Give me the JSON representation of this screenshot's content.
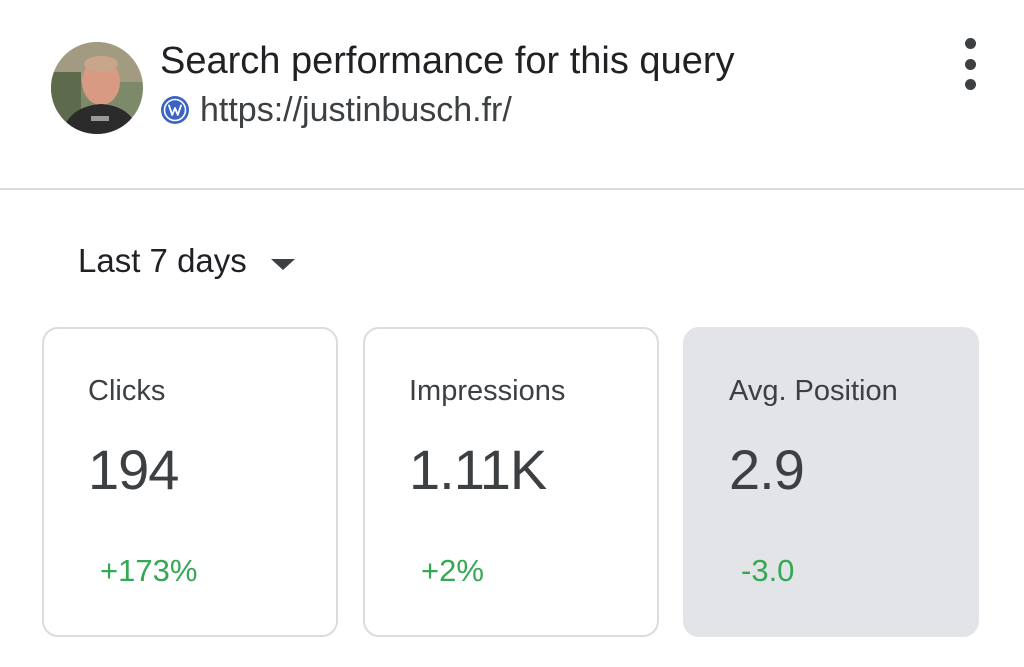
{
  "header": {
    "title": "Search performance for this query",
    "site_url": "https://justinbusch.fr/",
    "site_icon": "wordpress-icon",
    "more_icon": "more-vertical-icon"
  },
  "filter": {
    "date_range": "Last 7 days",
    "dropdown_icon": "caret-down-icon"
  },
  "metrics": [
    {
      "label": "Clicks",
      "value": "194",
      "change": "+173%",
      "change_color": "#34a853",
      "selected": false
    },
    {
      "label": "Impressions",
      "value": "1.11K",
      "change": "+2%",
      "change_color": "#34a853",
      "selected": false
    },
    {
      "label": "Avg. Position",
      "value": "2.9",
      "change": "-3.0",
      "change_color": "#34a853",
      "selected": true
    }
  ],
  "colors": {
    "positive": "#34a853",
    "wordpress_blue": "#3b63c4",
    "selected_card_bg": "#e3e4e8",
    "divider": "#dadce0"
  }
}
